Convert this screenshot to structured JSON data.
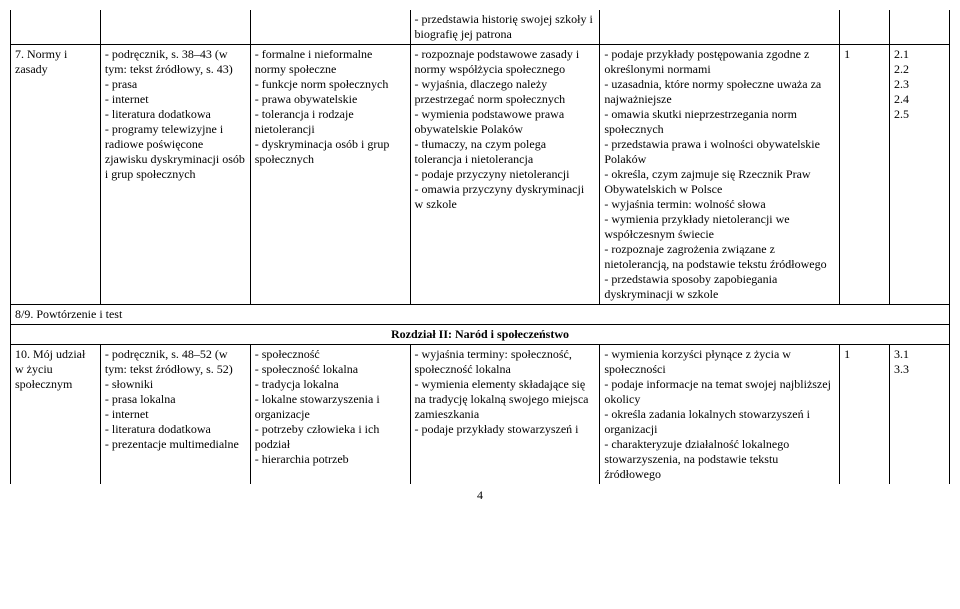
{
  "rows": {
    "r0": {
      "c4": "- przedstawia historię swojej szkoły i biografię jej patrona"
    },
    "r1": {
      "c1": "7. Normy i zasady",
      "c2": "- podręcznik, s. 38–43 (w tym: tekst źródłowy, s. 43)\n- prasa\n- internet\n- literatura dodatkowa\n- programy telewizyjne i radiowe poświęcone zjawisku dyskryminacji osób i grup społecznych",
      "c3": "- formalne i nieformalne normy społeczne\n- funkcje norm społecznych\n- prawa obywatelskie\n- tolerancja i rodzaje nietolerancji\n- dyskryminacja osób i grup społecznych",
      "c4": "- rozpoznaje podstawowe zasady i normy współżycia społecznego\n- wyjaśnia, dlaczego należy przestrzegać norm społecznych\n- wymienia podstawowe prawa obywatelskie Polaków\n- tłumaczy, na czym polega tolerancja i nietolerancja\n- podaje przyczyny nietolerancji\n- omawia przyczyny dyskryminacji w szkole",
      "c5": "- podaje przykłady postępowania zgodne z określonymi normami\n- uzasadnia, które normy społeczne uważa za najważniejsze\n- omawia skutki nieprzestrzegania norm społecznych\n- przedstawia prawa i wolności obywatelskie Polaków\n- określa, czym zajmuje się Rzecznik Praw Obywatelskich w Polsce\n- wyjaśnia termin: wolność słowa\n- wymienia przykłady nietolerancji we współczesnym świecie\n- rozpoznaje zagrożenia związane z nietolerancją, na podstawie tekstu źródłowego\n- przedstawia sposoby zapobiegania dyskryminacji w szkole",
      "c6": "1",
      "c7": "2.1\n2.2\n2.3\n2.4\n2.5"
    },
    "r2": {
      "c1": "8/9. Powtórzenie i test"
    },
    "section": {
      "title": "Rozdział II: Naród i społeczeństwo"
    },
    "r3": {
      "c1": "10. Mój udział w życiu społecznym",
      "c2": "- podręcznik, s. 48–52 (w tym: tekst źródłowy, s. 52)\n- słowniki\n- prasa lokalna\n- internet\n- literatura dodatkowa\n- prezentacje multimedialne",
      "c3": "- społeczność\n- społeczność lokalna\n- tradycja lokalna\n- lokalne stowarzyszenia i organizacje\n- potrzeby człowieka i ich podział\n- hierarchia potrzeb",
      "c4": "- wyjaśnia terminy: społeczność, społeczność lokalna\n- wymienia elementy składające się na tradycję lokalną swojego miejsca zamieszkania\n- podaje przykłady stowarzyszeń i",
      "c5": "- wymienia korzyści płynące z życia w społeczności\n- podaje informacje na temat swojej najbliższej okolicy\n- określa zadania lokalnych stowarzyszeń i organizacji\n- charakteryzuje działalność lokalnego stowarzyszenia, na podstawie tekstu źródłowego",
      "c6": "1",
      "c7": "3.1\n3.3"
    }
  },
  "pageNumber": "4",
  "style": {
    "font_family": "Times New Roman",
    "font_size_pt": 12,
    "border_color": "#000000",
    "background": "#ffffff",
    "text_color": "#000000"
  }
}
